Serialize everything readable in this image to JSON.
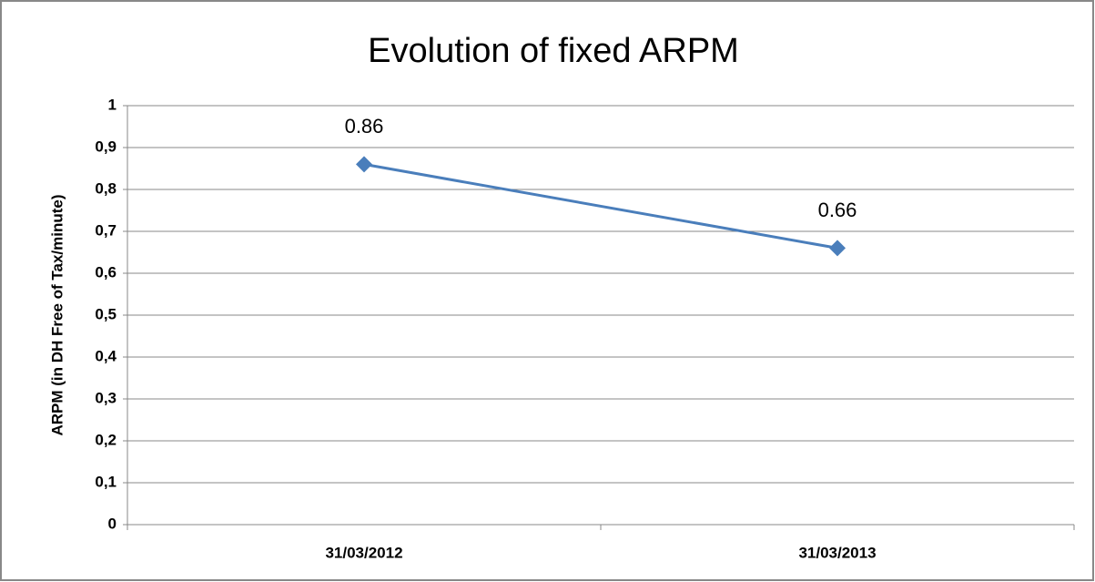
{
  "chart_data": {
    "type": "line",
    "title": "Evolution of fixed ARPM",
    "y_label": "ARPM (in DH Free of Tax/minute)",
    "categories": [
      "31/03/2012",
      "31/03/2013"
    ],
    "values": [
      0.86,
      0.66
    ],
    "color": "#4a7ebb",
    "ylim": [
      0,
      1
    ],
    "yticks": [
      0,
      {
        "value": 0.1,
        "label": "0,1"
      },
      {
        "value": 0.2,
        "label": "0,2"
      },
      {
        "value": 0.3,
        "label": "0,3"
      },
      {
        "value": 0.4,
        "label": "0,4"
      },
      {
        "value": 0.5,
        "label": "0,5"
      },
      {
        "value": 0.6,
        "label": "0,6"
      },
      {
        "value": 0.7,
        "label": "0,7"
      },
      {
        "value": 0.8,
        "label": "0,8"
      },
      {
        "value": 0.9,
        "label": "0,9"
      },
      1
    ],
    "grid": true
  }
}
